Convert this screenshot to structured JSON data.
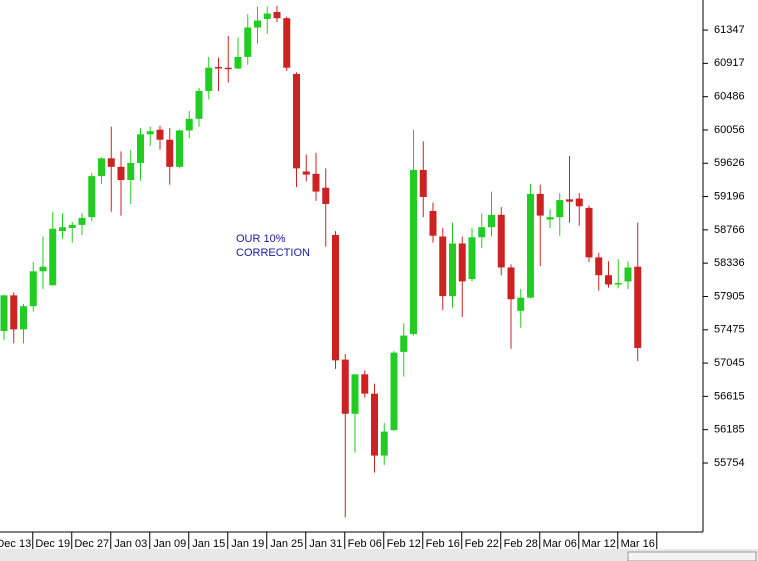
{
  "chart_data": {
    "type": "candlestick",
    "annotation": [
      "OUR 10%",
      "CORRECTION"
    ],
    "x": [
      null,
      "Dec 13",
      null,
      null,
      null,
      "Dec 19",
      null,
      null,
      null,
      "Dec 27",
      null,
      null,
      null,
      "Jan 03",
      null,
      null,
      null,
      "Jan 09",
      null,
      null,
      null,
      "Jan 15",
      null,
      null,
      null,
      "Jan 19",
      null,
      null,
      null,
      "Jan 25",
      null,
      null,
      null,
      "Jan 31",
      null,
      null,
      null,
      "Feb 06",
      null,
      null,
      null,
      "Feb 12",
      null,
      null,
      null,
      "Feb 16",
      null,
      null,
      null,
      "Feb 22",
      null,
      null,
      null,
      "Feb 28",
      null,
      null,
      null,
      "Mar 06",
      null,
      null,
      null,
      "Mar 12",
      null,
      null,
      null,
      "Mar 16"
    ],
    "open": [
      57460,
      57920,
      57480,
      57780,
      58230,
      58050,
      58750,
      58790,
      58830,
      58930,
      59460,
      59690,
      59580,
      59410,
      59630,
      60000,
      60060,
      59930,
      59580,
      60050,
      60200,
      60560,
      60870,
      60860,
      60850,
      61000,
      61380,
      61490,
      61580,
      61500,
      60780,
      59520,
      59490,
      59310,
      58700,
      57090,
      56390,
      56900,
      56650,
      55850,
      56180,
      57190,
      57420,
      59540,
      59010,
      58680,
      57910,
      58590,
      58130,
      58670,
      58800,
      58960,
      58280,
      57720,
      57890,
      59230,
      58900,
      58930,
      59160,
      59170,
      59050,
      58410,
      58180,
      58060,
      58100,
      58290
    ],
    "high": [
      57930,
      57960,
      57810,
      58350,
      58680,
      59000,
      58980,
      58870,
      58980,
      59500,
      59700,
      60100,
      59780,
      59800,
      60080,
      60100,
      60110,
      60080,
      60060,
      60300,
      60600,
      61000,
      60990,
      61270,
      61250,
      61550,
      61650,
      61650,
      61660,
      61520,
      60800,
      59740,
      59760,
      59560,
      58750,
      57160,
      56900,
      56950,
      56780,
      56270,
      57200,
      57560,
      60060,
      59910,
      59120,
      58790,
      58860,
      58680,
      58790,
      58980,
      59260,
      59060,
      58320,
      58000,
      59360,
      59350,
      59030,
      59240,
      59720,
      59240,
      59080,
      58470,
      58360,
      58390,
      58360,
      58860
    ],
    "low": [
      57340,
      57300,
      57300,
      57710,
      58000,
      58050,
      58650,
      58600,
      58700,
      58880,
      59360,
      59000,
      58950,
      59100,
      59400,
      59850,
      59800,
      59350,
      59560,
      59950,
      60100,
      60450,
      60560,
      60670,
      60840,
      60900,
      61170,
      61300,
      61450,
      60820,
      59320,
      59390,
      59140,
      58550,
      56970,
      55050,
      55890,
      56600,
      55630,
      55730,
      56170,
      56870,
      57400,
      58930,
      58600,
      57730,
      57760,
      57640,
      58100,
      58530,
      58680,
      58180,
      57230,
      57500,
      57880,
      58300,
      58790,
      58690,
      58860,
      58820,
      58350,
      57980,
      58020,
      58010,
      58000,
      57070
    ],
    "close": [
      57920,
      57480,
      57780,
      58230,
      58290,
      58780,
      58800,
      58830,
      58920,
      59460,
      59690,
      59580,
      59410,
      59630,
      60000,
      60040,
      59930,
      59580,
      60050,
      60200,
      60560,
      60860,
      60850,
      60850,
      61000,
      61380,
      61470,
      61560,
      61500,
      60860,
      59560,
      59480,
      59260,
      59100,
      57080,
      56390,
      56900,
      56650,
      55850,
      56160,
      57180,
      57400,
      59540,
      59190,
      58690,
      57910,
      58590,
      58100,
      58670,
      58800,
      58960,
      58280,
      57870,
      57890,
      59230,
      58950,
      58930,
      59150,
      59130,
      59070,
      58410,
      58180,
      58060,
      58080,
      58280,
      57240
    ],
    "up_color": "#22cc22",
    "down_color": "#cc2222",
    "ylim": [
      54863,
      61735
    ],
    "yticks": [
      55754,
      56185,
      56615,
      57045,
      57475,
      57905,
      58336,
      58766,
      59196,
      59626,
      60056,
      60486,
      60917,
      61347
    ]
  }
}
